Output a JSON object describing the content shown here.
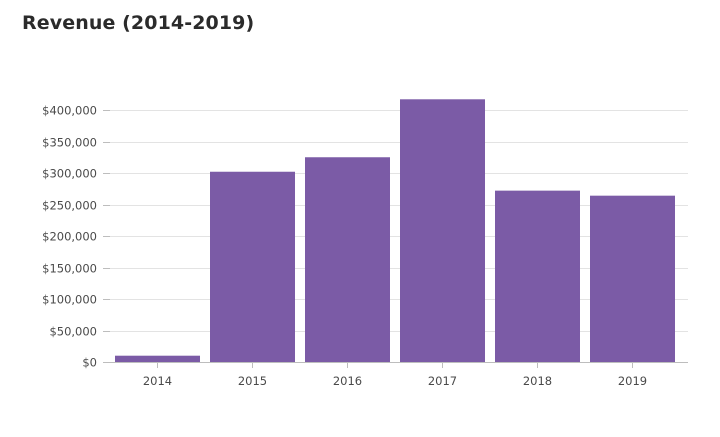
{
  "chart_data": {
    "type": "bar",
    "title": "Revenue (2014-2019)",
    "xlabel": "",
    "ylabel": "",
    "categories": [
      "2014",
      "2015",
      "2016",
      "2017",
      "2018",
      "2019"
    ],
    "values": [
      10000,
      302000,
      325000,
      417000,
      272000,
      264000
    ],
    "ylim": [
      0,
      400000
    ],
    "y_ticks": [
      {
        "value": 0,
        "label": "$0"
      },
      {
        "value": 50000,
        "label": "$50,000"
      },
      {
        "value": 100000,
        "label": "$100,000"
      },
      {
        "value": 150000,
        "label": "$150,000"
      },
      {
        "value": 200000,
        "label": "$200,000"
      },
      {
        "value": 250000,
        "label": "$250,000"
      },
      {
        "value": 300000,
        "label": "$300,000"
      },
      {
        "value": 350000,
        "label": "$350,000"
      },
      {
        "value": 400000,
        "label": "$400,000"
      }
    ],
    "grid": true,
    "legend": "none",
    "colors": {
      "bar": "#7b5ba6",
      "grid": "#e3e3e3",
      "axis": "#bdbdbd",
      "text": "#4a4a4a",
      "title": "#2b2b2b"
    }
  }
}
